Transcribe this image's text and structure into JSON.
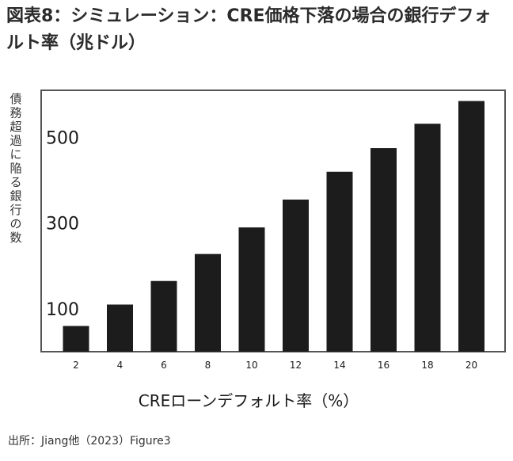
{
  "title": "図表8：シミュレーション：CRE価格下落の場合の銀行デフォルト率（兆ドル）",
  "source": "出所：Jiang他（2023）Figure3",
  "chart_data": {
    "type": "bar",
    "title": "図表8：シミュレーション：CRE価格下落の場合の銀行デフォルト率（兆ドル）",
    "xlabel": "CREローンデフォルト率（%）",
    "ylabel": "債務超過に陥る銀行の数",
    "categories": [
      "2",
      "4",
      "6",
      "8",
      "10",
      "12",
      "14",
      "16",
      "18",
      "20"
    ],
    "values": [
      60,
      110,
      165,
      228,
      290,
      355,
      420,
      475,
      532,
      585
    ],
    "y_ticks": [
      100,
      300,
      500
    ],
    "ylim": [
      0,
      610
    ],
    "bar_color": "#1c1c1c",
    "grid": false
  }
}
